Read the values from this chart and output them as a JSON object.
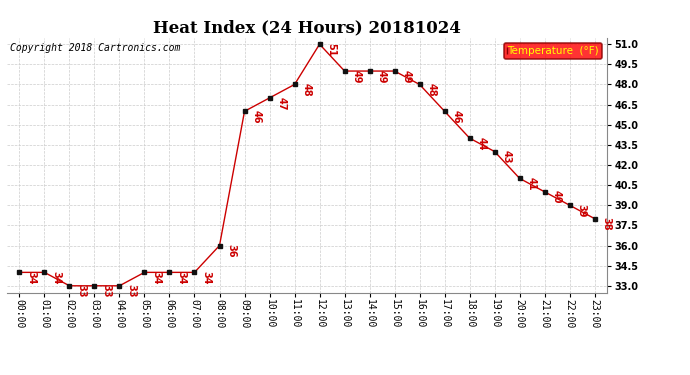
{
  "title": "Heat Index (24 Hours) 20181024",
  "copyright": "Copyright 2018 Cartronics.com",
  "legend_label": "Temperature  (°F)",
  "times": [
    "00:00",
    "01:00",
    "02:00",
    "03:00",
    "04:00",
    "05:00",
    "06:00",
    "07:00",
    "08:00",
    "09:00",
    "10:00",
    "11:00",
    "12:00",
    "13:00",
    "14:00",
    "15:00",
    "16:00",
    "17:00",
    "18:00",
    "19:00",
    "20:00",
    "21:00",
    "22:00",
    "23:00"
  ],
  "values": [
    34,
    34,
    33,
    33,
    33,
    34,
    34,
    34,
    36,
    46,
    47,
    48,
    51,
    49,
    49,
    49,
    48,
    46,
    44,
    43,
    41,
    40,
    39,
    38
  ],
  "ylim": [
    32.5,
    51.5
  ],
  "yticks": [
    33.0,
    34.5,
    36.0,
    37.5,
    39.0,
    40.5,
    42.0,
    43.5,
    45.0,
    46.5,
    48.0,
    49.5,
    51.0
  ],
  "line_color": "#cc0000",
  "marker_color": "#111111",
  "label_color": "#cc0000",
  "background_color": "#ffffff",
  "grid_color": "#cccccc",
  "title_fontsize": 12,
  "anno_fontsize": 7,
  "tick_fontsize": 7,
  "copyright_fontsize": 7
}
